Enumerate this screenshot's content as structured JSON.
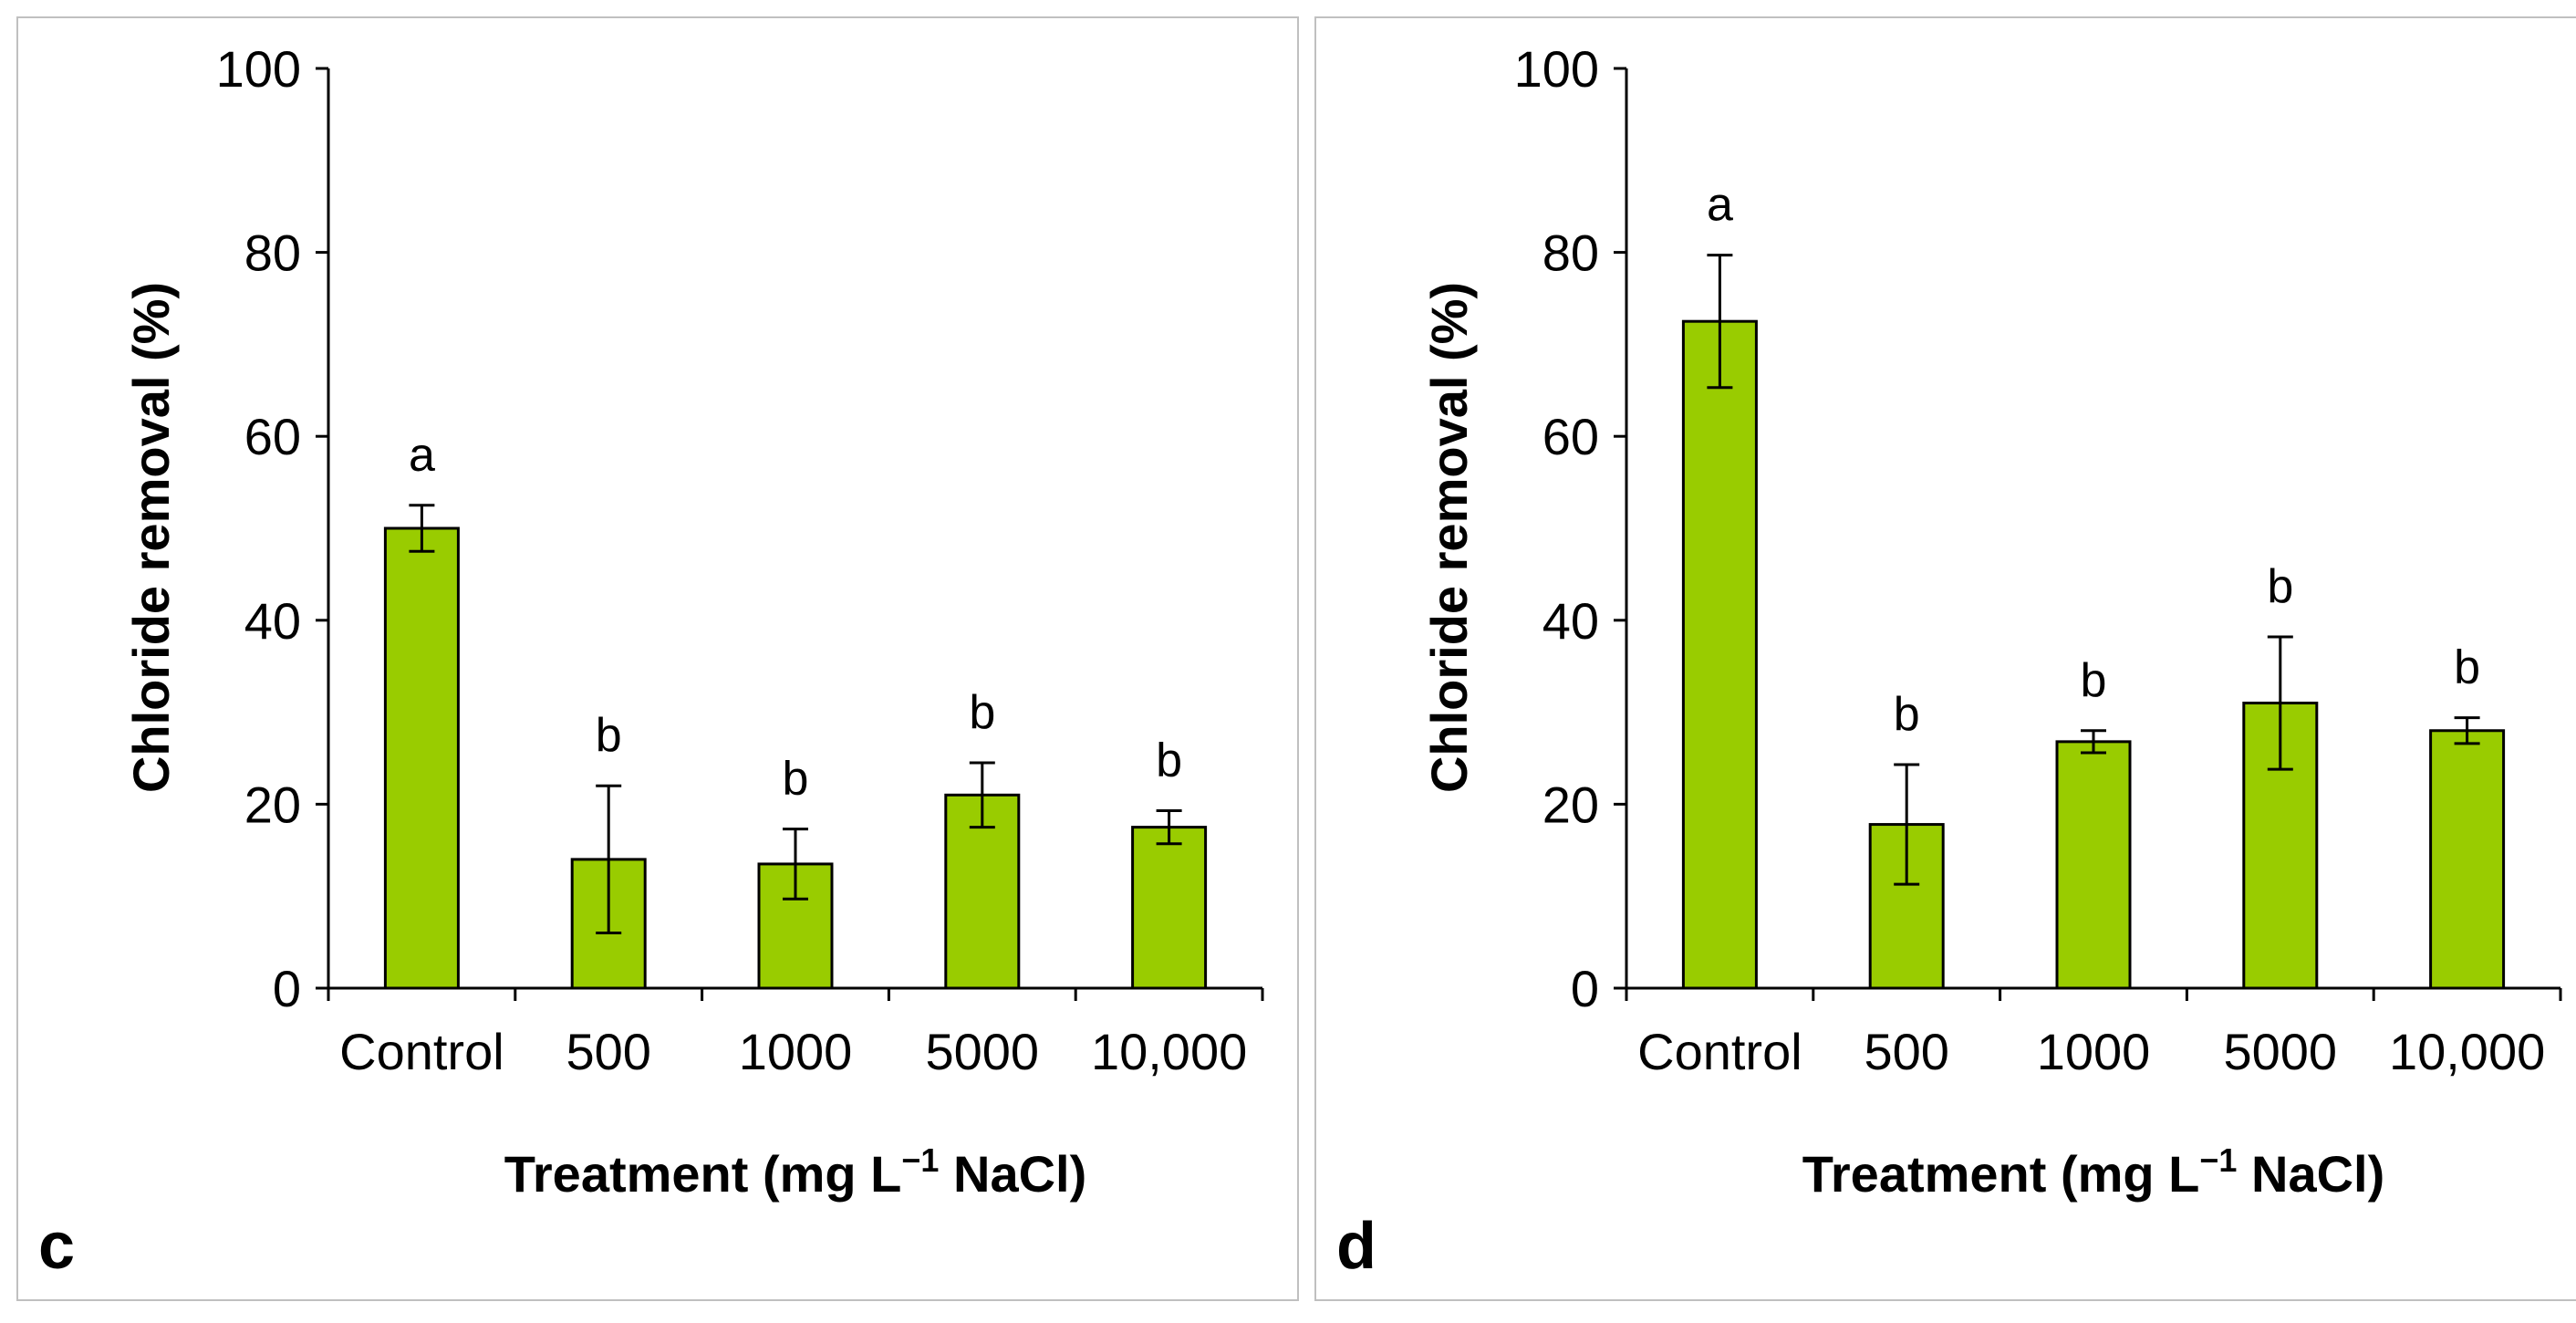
{
  "chart_data": [
    {
      "type": "bar",
      "panel_label": "c",
      "categories": [
        "Control",
        "500",
        "1000",
        "5000",
        "10,000"
      ],
      "values": [
        50,
        14,
        13.5,
        21,
        17.5
      ],
      "errors": [
        2.5,
        8,
        3.8,
        3.5,
        1.8
      ],
      "significance": [
        "a",
        "b",
        "b",
        "b",
        "b"
      ],
      "ylabel": "Chloride removal (%)",
      "xlabel": "Treatment (mg L",
      "xlabel_sup": "−1",
      "xlabel_suffix": " NaCl)",
      "ylim": [
        0,
        100
      ],
      "yticks": [
        "0",
        "20",
        "40",
        "60",
        "80",
        "100"
      ],
      "bar_color": "#99cc00"
    },
    {
      "type": "bar",
      "panel_label": "d",
      "categories": [
        "Control",
        "500",
        "1000",
        "5000",
        "10,000"
      ],
      "values": [
        72.5,
        17.8,
        26.8,
        31,
        28
      ],
      "errors": [
        7.2,
        6.5,
        1.2,
        7.2,
        1.4
      ],
      "significance": [
        "a",
        "b",
        "b",
        "b",
        "b"
      ],
      "ylabel": "Chloride removal (%)",
      "xlabel": "Treatment (mg L",
      "xlabel_sup": "−1",
      "xlabel_suffix": " NaCl)",
      "ylim": [
        0,
        100
      ],
      "yticks": [
        "0",
        "20",
        "40",
        "60",
        "80",
        "100"
      ],
      "bar_color": "#99cc00"
    }
  ]
}
